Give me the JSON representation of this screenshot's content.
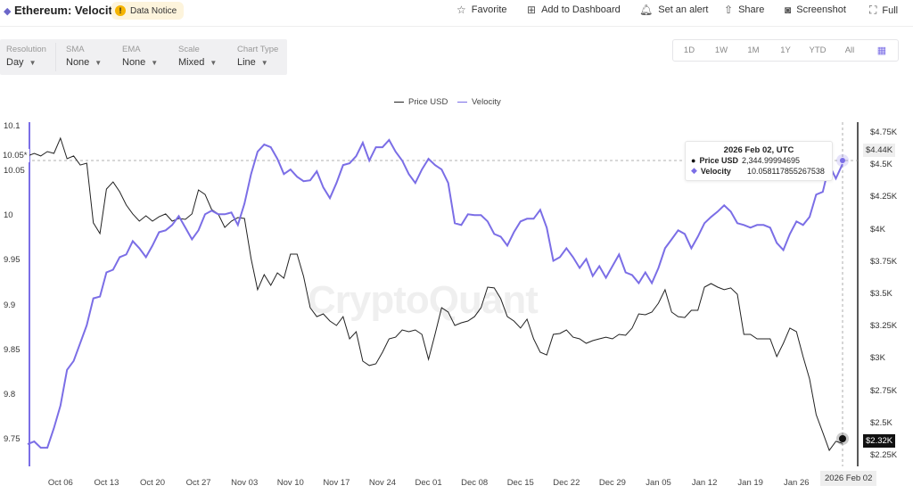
{
  "header": {
    "title": "Ethereum: Velocity",
    "notice": "Data Notice",
    "actions": [
      {
        "icon": "star-icon",
        "label": "Favorite"
      },
      {
        "icon": "add-dashboard-icon",
        "label": "Add to Dashboard"
      },
      {
        "icon": "bell-icon",
        "label": "Set an alert"
      },
      {
        "icon": "share-icon",
        "label": "Share"
      },
      {
        "icon": "camera-icon",
        "label": "Screenshot"
      },
      {
        "icon": "fullscreen-icon",
        "label": "Full"
      }
    ]
  },
  "toolbar": [
    {
      "label": "Resolution",
      "value": "Day"
    },
    {
      "label": "SMA",
      "value": "None"
    },
    {
      "label": "EMA",
      "value": "None"
    },
    {
      "label": "Scale",
      "value": "Mixed"
    },
    {
      "label": "Chart Type",
      "value": "Line"
    }
  ],
  "ranges": [
    "1D",
    "1W",
    "1M",
    "1Y",
    "YTD",
    "All"
  ],
  "tooltip": {
    "date": "2026 Feb 02, UTC",
    "price_label": "Price USD",
    "price_value": "2,344.99994695",
    "velocity_label": "Velocity",
    "velocity_value": "10.058117855267538"
  },
  "crosshair": {
    "left_value": "10.05*",
    "right_value": "$4.44K",
    "price_badge": "$2.32K",
    "date_badge": "2026 Feb 02"
  },
  "watermark": "CryptoQuant",
  "colors": {
    "velocity": "#7b6ee6",
    "price": "#222222"
  },
  "chart_data": {
    "type": "line",
    "x_start": "2025-10-01",
    "x_end": "2026-02-02",
    "x_step": "1 day",
    "legend": [
      "Price USD",
      "Velocity"
    ],
    "legend_position": "top-center",
    "left_axis": {
      "label": "Velocity",
      "ticks": [
        "10.1",
        "10.05",
        "10",
        "9.95",
        "9.9",
        "9.85",
        "9.8",
        "9.75"
      ],
      "ylim": [
        9.735,
        10.1
      ]
    },
    "right_axis": {
      "label": "Price USD",
      "ticks": [
        "$4.75K",
        "$4.5K",
        "$4.25K",
        "$4K",
        "$3.75K",
        "$3.5K",
        "$3.25K",
        "$3K",
        "$2.75K",
        "$2.5K",
        "$2.25K"
      ],
      "ylim": [
        2200,
        4800
      ]
    },
    "x_ticks": [
      "Oct 06",
      "Oct 13",
      "Oct 20",
      "Oct 27",
      "Nov 03",
      "Nov 10",
      "Nov 17",
      "Nov 24",
      "Dec 01",
      "Dec 08",
      "Dec 15",
      "Dec 22",
      "Dec 29",
      "Jan 05",
      "Jan 12",
      "Jan 19",
      "Jan 26"
    ],
    "series": [
      {
        "name": "Price USD",
        "axis": "right",
        "values": [
          4571,
          4591,
          4571,
          4605,
          4591,
          4709,
          4550,
          4571,
          4501,
          4515,
          4053,
          3970,
          4315,
          4370,
          4294,
          4191,
          4122,
          4066,
          4108,
          4066,
          4100,
          4122,
          4066,
          4087,
          4080,
          4122,
          4308,
          4273,
          4156,
          4122,
          4018,
          4066,
          4094,
          4087,
          3776,
          3535,
          3652,
          3569,
          3666,
          3624,
          3811,
          3811,
          3638,
          3396,
          3327,
          3348,
          3293,
          3258,
          3327,
          3155,
          3210,
          2982,
          2948,
          2961,
          3051,
          3155,
          3168,
          3224,
          3210,
          3224,
          3189,
          2996,
          3189,
          3396,
          3362,
          3258,
          3279,
          3293,
          3327,
          3396,
          3555,
          3549,
          3466,
          3327,
          3293,
          3238,
          3307,
          3155,
          3051,
          3030,
          3189,
          3196,
          3224,
          3168,
          3155,
          3120,
          3141,
          3155,
          3168,
          3155,
          3189,
          3182,
          3238,
          3348,
          3341,
          3362,
          3431,
          3535,
          3362,
          3327,
          3320,
          3376,
          3376,
          3555,
          3583,
          3555,
          3535,
          3549,
          3500,
          3189,
          3189,
          3155,
          3155,
          3155,
          3017,
          3120,
          3238,
          3210,
          3017,
          2844,
          2568,
          2430,
          2291,
          2361,
          2345
        ]
      },
      {
        "name": "Velocity",
        "axis": "left",
        "values": [
          9.745,
          9.748,
          9.741,
          9.741,
          9.763,
          9.788,
          9.828,
          9.838,
          9.858,
          9.878,
          9.908,
          9.91,
          9.937,
          9.94,
          9.954,
          9.957,
          9.972,
          9.964,
          9.954,
          9.967,
          9.982,
          9.984,
          9.99,
          10.0,
          9.987,
          9.974,
          9.984,
          10.002,
          10.006,
          10.002,
          10.002,
          10.004,
          9.99,
          10.014,
          10.047,
          10.072,
          10.08,
          10.077,
          10.064,
          10.047,
          10.052,
          10.044,
          10.039,
          10.04,
          10.05,
          10.032,
          10.02,
          10.037,
          10.057,
          10.059,
          10.067,
          10.082,
          10.062,
          10.077,
          10.077,
          10.085,
          10.072,
          10.062,
          10.047,
          10.037,
          10.052,
          10.064,
          10.057,
          10.052,
          10.037,
          9.992,
          9.99,
          10.002,
          10.001,
          10.001,
          9.994,
          9.98,
          9.977,
          9.967,
          9.982,
          9.994,
          9.997,
          9.997,
          10.007,
          9.987,
          9.95,
          9.954,
          9.964,
          9.954,
          9.942,
          9.952,
          9.933,
          9.944,
          9.931,
          9.944,
          9.957,
          9.937,
          9.934,
          9.925,
          9.937,
          9.925,
          9.942,
          9.964,
          9.974,
          9.984,
          9.98,
          9.964,
          9.977,
          9.992,
          9.999,
          10.005,
          10.012,
          10.005,
          9.992,
          9.99,
          9.987,
          9.99,
          9.99,
          9.987,
          9.97,
          9.962,
          9.98,
          9.994,
          9.99,
          9.999,
          10.024,
          10.027,
          10.057,
          10.042,
          10.058
        ]
      }
    ]
  }
}
